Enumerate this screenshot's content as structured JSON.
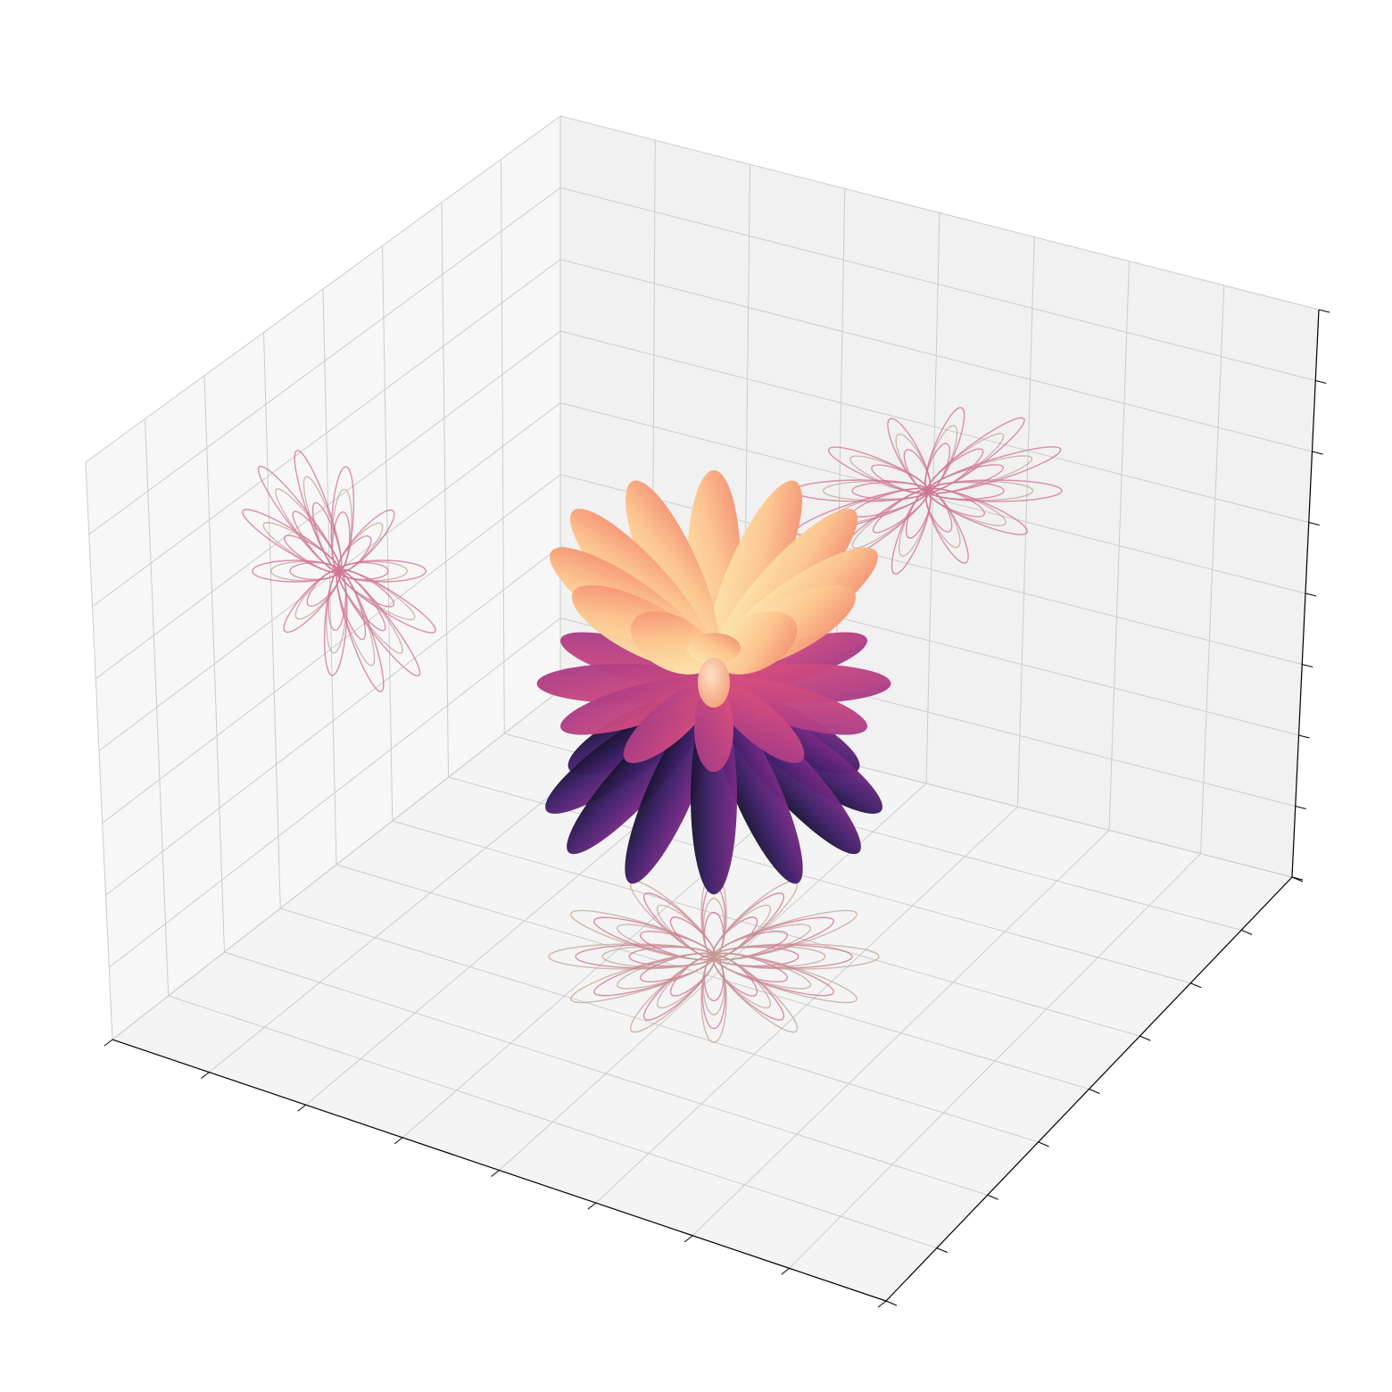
{
  "chart_data": {
    "type": "surface3d",
    "title": "",
    "xlabel": "",
    "ylabel": "",
    "zlabel": "",
    "tick_labels_visible": false,
    "grid": true,
    "legend": "none",
    "colormap": [
      "#000004",
      "#3b0f70",
      "#8c2981",
      "#de4968",
      "#fe9f6d",
      "#fcfdbf"
    ],
    "projection_color": "#d46a96",
    "projection_color_alt": "#c2a596",
    "surface": {
      "description_shape": "flower",
      "petal_counts": [
        12,
        12,
        12
      ],
      "petal_lengths": [
        1.0,
        0.85,
        0.65
      ],
      "elevations_deg": [
        -38,
        0,
        38
      ],
      "center_bulb": true
    },
    "projections": [
      "xy-floor",
      "xz-back-wall",
      "yz-side-wall"
    ],
    "panes": {
      "floor": "#f4f4f4",
      "left_wall": "#f7f7f7",
      "right_wall": "#f1f1f1",
      "grid_color": "#cccccc"
    }
  }
}
